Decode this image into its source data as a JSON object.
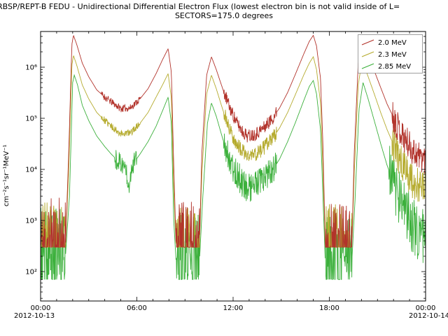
{
  "header": {
    "title_line1": "RBSP/REPT-B  FEDU - Unidirectional Differential Electron Flux (lowest electron bin is not valid inside of L=",
    "title_line2": "SECTORS=175.0 degrees"
  },
  "chart_data": {
    "type": "line",
    "title": "RBSP/REPT-B FEDU - Unidirectional Differential Electron Flux (lowest electron bin is not valid inside of L=...)",
    "subtitle": "SECTORS=175.0 degrees",
    "ylabel": "cm⁻²s⁻¹sr⁻¹MeV⁻¹",
    "log_y": true,
    "ylim": [
      30,
      5000000
    ],
    "x_hours_range": [
      0,
      24
    ],
    "ytick_labels": [
      "10²",
      "10³",
      "10⁴",
      "10⁵",
      "10⁶"
    ],
    "ytick_values": [
      100,
      1000,
      10000,
      100000,
      1000000
    ],
    "xtick_hours": [
      0,
      6,
      12,
      18,
      24
    ],
    "xtick_labels": [
      "00:00",
      "06:00",
      "12:00",
      "18:00",
      "00:00"
    ],
    "xlabel_dates": [
      "2012-10-13",
      "2012-10-14"
    ],
    "legend_position": "upper right",
    "grid": false,
    "series": [
      {
        "name": "2.0 MeV",
        "color": "#b2332b",
        "seed": 11,
        "keypoints": [
          [
            0.0,
            300
          ],
          [
            1.55,
            300
          ],
          [
            1.75,
            20000
          ],
          [
            1.95,
            2800000
          ],
          [
            2.05,
            4200000
          ],
          [
            2.25,
            2800000
          ],
          [
            2.6,
            1200000
          ],
          [
            3.0,
            650000
          ],
          [
            3.5,
            360000
          ],
          [
            4.0,
            260000
          ],
          [
            4.4,
            210000
          ],
          [
            5.0,
            155000
          ],
          [
            5.6,
            160000
          ],
          [
            6.2,
            240000
          ],
          [
            6.7,
            380000
          ],
          [
            7.2,
            750000
          ],
          [
            7.6,
            1400000
          ],
          [
            7.95,
            2300000
          ],
          [
            8.15,
            800000
          ],
          [
            8.3,
            12000
          ],
          [
            8.45,
            300
          ],
          [
            9.9,
            300
          ],
          [
            10.05,
            20000
          ],
          [
            10.35,
            700000
          ],
          [
            10.65,
            1600000
          ],
          [
            10.95,
            900000
          ],
          [
            11.35,
            380000
          ],
          [
            11.8,
            160000
          ],
          [
            12.2,
            85000
          ],
          [
            12.6,
            55000
          ],
          [
            12.9,
            45000
          ],
          [
            13.4,
            50000
          ],
          [
            13.9,
            65000
          ],
          [
            14.4,
            95000
          ],
          [
            14.9,
            160000
          ],
          [
            15.4,
            320000
          ],
          [
            15.9,
            750000
          ],
          [
            16.4,
            1800000
          ],
          [
            16.75,
            3200000
          ],
          [
            17.0,
            4200000
          ],
          [
            17.2,
            2600000
          ],
          [
            17.45,
            600000
          ],
          [
            17.6,
            30000
          ],
          [
            17.75,
            300
          ],
          [
            19.4,
            300
          ],
          [
            19.55,
            20000
          ],
          [
            19.8,
            1200000
          ],
          [
            20.05,
            3600000
          ],
          [
            20.35,
            2000000
          ],
          [
            20.8,
            850000
          ],
          [
            21.2,
            400000
          ],
          [
            21.6,
            190000
          ],
          [
            22.1,
            90000
          ],
          [
            22.6,
            45000
          ],
          [
            23.1,
            26000
          ],
          [
            23.6,
            18000
          ],
          [
            24.0,
            16000
          ]
        ],
        "noise": [
          {
            "t0": 0,
            "t1": 1.55,
            "amp": 1.0,
            "floor": 300
          },
          {
            "t0": 8.45,
            "t1": 9.9,
            "amp": 0.9,
            "floor": 300
          },
          {
            "t0": 17.75,
            "t1": 19.4,
            "amp": 0.9,
            "floor": 300
          },
          {
            "t0": 11.4,
            "t1": 14.7,
            "amp": 0.13
          },
          {
            "t0": 3.8,
            "t1": 6.2,
            "amp": 0.07
          },
          {
            "t0": 21.9,
            "t1": 24,
            "amp": 0.3
          }
        ]
      },
      {
        "name": "2.3 MeV",
        "color": "#b5ab2e",
        "seed": 23,
        "keypoints": [
          [
            0.0,
            300
          ],
          [
            1.55,
            300
          ],
          [
            1.75,
            9000
          ],
          [
            1.95,
            1100000
          ],
          [
            2.05,
            1700000
          ],
          [
            2.25,
            1100000
          ],
          [
            2.6,
            450000
          ],
          [
            3.0,
            240000
          ],
          [
            3.5,
            130000
          ],
          [
            4.0,
            90000
          ],
          [
            4.4,
            70000
          ],
          [
            5.0,
            50000
          ],
          [
            5.6,
            52000
          ],
          [
            6.2,
            80000
          ],
          [
            6.7,
            130000
          ],
          [
            7.2,
            260000
          ],
          [
            7.6,
            450000
          ],
          [
            7.95,
            750000
          ],
          [
            8.15,
            250000
          ],
          [
            8.3,
            4000
          ],
          [
            8.45,
            300
          ],
          [
            9.9,
            300
          ],
          [
            10.05,
            8000
          ],
          [
            10.35,
            300000
          ],
          [
            10.65,
            700000
          ],
          [
            10.95,
            380000
          ],
          [
            11.35,
            150000
          ],
          [
            11.8,
            60000
          ],
          [
            12.2,
            32000
          ],
          [
            12.6,
            22000
          ],
          [
            12.9,
            18000
          ],
          [
            13.4,
            20000
          ],
          [
            13.9,
            26000
          ],
          [
            14.4,
            38000
          ],
          [
            14.9,
            65000
          ],
          [
            15.4,
            130000
          ],
          [
            15.9,
            300000
          ],
          [
            16.4,
            700000
          ],
          [
            16.75,
            1200000
          ],
          [
            17.0,
            1600000
          ],
          [
            17.2,
            900000
          ],
          [
            17.45,
            200000
          ],
          [
            17.6,
            10000
          ],
          [
            17.75,
            300
          ],
          [
            19.4,
            300
          ],
          [
            19.55,
            8000
          ],
          [
            19.8,
            450000
          ],
          [
            20.05,
            1400000
          ],
          [
            20.35,
            750000
          ],
          [
            20.8,
            300000
          ],
          [
            21.2,
            130000
          ],
          [
            21.6,
            60000
          ],
          [
            22.1,
            26000
          ],
          [
            22.6,
            12000
          ],
          [
            23.1,
            6500
          ],
          [
            23.6,
            4500
          ],
          [
            24.0,
            4500
          ]
        ],
        "noise": [
          {
            "t0": 0,
            "t1": 1.55,
            "amp": 0.9,
            "floor": 300
          },
          {
            "t0": 8.45,
            "t1": 9.9,
            "amp": 0.85,
            "floor": 300
          },
          {
            "t0": 17.75,
            "t1": 19.4,
            "amp": 0.85,
            "floor": 300
          },
          {
            "t0": 11.4,
            "t1": 14.7,
            "amp": 0.15
          },
          {
            "t0": 3.8,
            "t1": 6.2,
            "amp": 0.07
          },
          {
            "t0": 21.9,
            "t1": 24,
            "amp": 0.35
          }
        ]
      },
      {
        "name": "2.85 MeV",
        "color": "#3cb03c",
        "seed": 37,
        "keypoints": [
          [
            0.0,
            200
          ],
          [
            1.55,
            200
          ],
          [
            1.8,
            3000
          ],
          [
            2.0,
            500000
          ],
          [
            2.1,
            700000
          ],
          [
            2.3,
            450000
          ],
          [
            2.6,
            180000
          ],
          [
            3.0,
            90000
          ],
          [
            3.5,
            45000
          ],
          [
            4.0,
            28000
          ],
          [
            4.4,
            20000
          ],
          [
            5.0,
            13000
          ],
          [
            5.3,
            11000
          ],
          [
            5.5,
            5000
          ],
          [
            5.7,
            12000
          ],
          [
            6.2,
            20000
          ],
          [
            6.7,
            35000
          ],
          [
            7.2,
            70000
          ],
          [
            7.6,
            140000
          ],
          [
            7.95,
            260000
          ],
          [
            8.15,
            80000
          ],
          [
            8.3,
            1000
          ],
          [
            8.45,
            150
          ],
          [
            9.9,
            150
          ],
          [
            10.1,
            2500
          ],
          [
            10.4,
            80000
          ],
          [
            10.65,
            200000
          ],
          [
            10.95,
            110000
          ],
          [
            11.35,
            40000
          ],
          [
            11.8,
            16000
          ],
          [
            12.2,
            8000
          ],
          [
            12.6,
            5500
          ],
          [
            12.9,
            4500
          ],
          [
            13.4,
            5000
          ],
          [
            13.9,
            6000
          ],
          [
            14.4,
            9000
          ],
          [
            14.9,
            16000
          ],
          [
            15.4,
            35000
          ],
          [
            15.9,
            85000
          ],
          [
            16.4,
            220000
          ],
          [
            16.75,
            420000
          ],
          [
            17.0,
            550000
          ],
          [
            17.2,
            300000
          ],
          [
            17.45,
            60000
          ],
          [
            17.6,
            3000
          ],
          [
            17.75,
            150
          ],
          [
            19.4,
            150
          ],
          [
            19.6,
            2500
          ],
          [
            19.85,
            150000
          ],
          [
            20.1,
            500000
          ],
          [
            20.4,
            250000
          ],
          [
            20.8,
            90000
          ],
          [
            21.2,
            32000
          ],
          [
            21.6,
            12000
          ],
          [
            22.1,
            4500
          ],
          [
            22.6,
            1800
          ],
          [
            23.1,
            900
          ],
          [
            23.6,
            550
          ],
          [
            24.0,
            450
          ]
        ],
        "noise": [
          {
            "t0": 0,
            "t1": 1.55,
            "amp": 0.95,
            "floor": 70
          },
          {
            "t0": 8.45,
            "t1": 9.9,
            "amp": 0.95,
            "floor": 70
          },
          {
            "t0": 17.75,
            "t1": 19.4,
            "amp": 0.95,
            "floor": 70
          },
          {
            "t0": 11.4,
            "t1": 14.7,
            "amp": 0.3
          },
          {
            "t0": 4.6,
            "t1": 6.0,
            "amp": 0.2
          },
          {
            "t0": 21.7,
            "t1": 24,
            "amp": 0.55,
            "floor": 80
          }
        ]
      }
    ]
  }
}
